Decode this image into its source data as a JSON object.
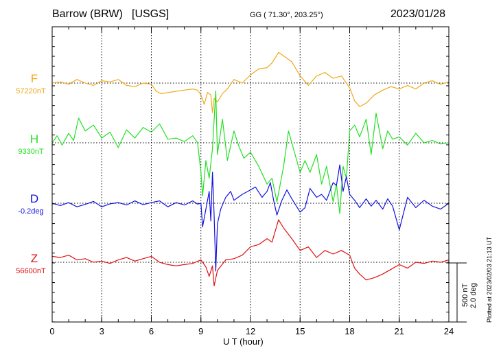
{
  "header": {
    "station": "Barrow (BRW)",
    "source": "[USGS]",
    "coords": "GG ( 71.30°, 203.25°)",
    "date": "2023/01/28"
  },
  "scale_bar": {
    "nt_label": "500 nT",
    "deg_label": "2.0 deg"
  },
  "plotted_note": "Plotted at 2023/02/03 21:13 UT",
  "chart_data": {
    "type": "line",
    "title": "",
    "xlabel": "U T (hour)",
    "ylabel": "",
    "xlim": [
      0,
      24
    ],
    "x_ticks": [
      "0",
      "3",
      "6",
      "9",
      "12",
      "15",
      "18",
      "21",
      "24"
    ],
    "grid": true,
    "x_unit": "hour UT",
    "baseline_unit": "nT (D in deg)",
    "scale_nT_per_bar": 500,
    "scale_deg_per_bar": 2.0,
    "series": [
      {
        "name": "F",
        "baseline_label": "57220nT",
        "color": "#f0a818",
        "points_x": [
          0,
          0.5,
          1,
          1.5,
          2,
          2.5,
          3,
          3.5,
          4,
          4.5,
          5,
          5.5,
          6,
          6.3,
          6.6,
          7,
          7.5,
          8,
          8.5,
          8.8,
          9,
          9.2,
          9.4,
          9.6,
          9.7,
          9.8,
          10,
          10.3,
          10.6,
          11,
          11.5,
          12,
          12.5,
          13,
          13.3,
          13.7,
          14,
          14.5,
          15,
          15.5,
          16,
          16.5,
          17,
          17.5,
          18,
          18.3,
          18.6,
          19,
          19.5,
          20,
          20.5,
          21,
          21.5,
          22,
          22.5,
          23,
          23.5,
          24
        ],
        "values": [
          0,
          10,
          -10,
          30,
          0,
          -20,
          20,
          10,
          30,
          -20,
          -30,
          0,
          -10,
          -70,
          -90,
          -80,
          -70,
          -60,
          -50,
          -60,
          -100,
          -180,
          -80,
          -100,
          -250,
          -130,
          -160,
          -90,
          -50,
          30,
          0,
          70,
          120,
          130,
          170,
          260,
          230,
          180,
          60,
          -20,
          60,
          90,
          40,
          60,
          -40,
          -150,
          -200,
          -170,
          -100,
          -60,
          -30,
          -50,
          -20,
          -50,
          0,
          20,
          -10,
          10
        ]
      },
      {
        "name": "H",
        "baseline_label": "9330nT",
        "color": "#22e022",
        "points_x": [
          0,
          0.3,
          0.6,
          1,
          1.3,
          1.6,
          2,
          2.5,
          3,
          3.5,
          4,
          4.5,
          5,
          5.5,
          6,
          6.5,
          7,
          7.5,
          8,
          8.5,
          8.8,
          9,
          9.1,
          9.3,
          9.5,
          9.7,
          9.9,
          10,
          10.3,
          10.6,
          11,
          11.3,
          11.6,
          12,
          12.5,
          13,
          13.3,
          13.6,
          14,
          14.3,
          14.6,
          15,
          15.3,
          15.6,
          16,
          16.3,
          16.6,
          17,
          17.2,
          17.4,
          17.6,
          17.8,
          18,
          18.3,
          18.6,
          19,
          19.3,
          19.6,
          20,
          20.3,
          20.6,
          21,
          21.5,
          22,
          22.5,
          23,
          23.5,
          24
        ],
        "values": [
          0,
          60,
          -20,
          80,
          20,
          210,
          100,
          150,
          40,
          90,
          -40,
          110,
          40,
          130,
          90,
          160,
          30,
          40,
          10,
          60,
          0,
          -250,
          -450,
          -150,
          -300,
          -50,
          440,
          -100,
          200,
          -150,
          100,
          -30,
          -130,
          -80,
          -200,
          -350,
          -300,
          -500,
          -200,
          100,
          -50,
          -250,
          -150,
          -250,
          -100,
          -350,
          -200,
          -500,
          -350,
          -600,
          -200,
          -300,
          100,
          150,
          50,
          200,
          -100,
          250,
          -50,
          100,
          30,
          50,
          -20,
          80,
          0,
          20,
          -10,
          0
        ]
      },
      {
        "name": "D",
        "baseline_label": "-0.2deg",
        "color": "#1010e0",
        "points_x": [
          0,
          0.5,
          1,
          1.5,
          2,
          2.5,
          3,
          3.5,
          4,
          4.5,
          5,
          5.5,
          6,
          6.5,
          7,
          7.5,
          8,
          8.5,
          8.8,
          9,
          9.1,
          9.3,
          9.5,
          9.6,
          9.7,
          9.8,
          9.9,
          10,
          10.2,
          10.5,
          10.8,
          11,
          11.5,
          12,
          12.3,
          12.7,
          13,
          13.2,
          13.4,
          13.6,
          13.9,
          14.2,
          14.5,
          15,
          15.3,
          15.6,
          16,
          16.3,
          16.6,
          17,
          17.2,
          17.4,
          17.6,
          17.8,
          18,
          18.3,
          18.6,
          19,
          19.3,
          19.6,
          20,
          20.3,
          20.6,
          21,
          21.5,
          22,
          22.5,
          23,
          23.5,
          24
        ],
        "values": [
          0,
          -0.08,
          0.02,
          -0.12,
          -0.04,
          0.06,
          -0.12,
          -0.02,
          0.02,
          -0.06,
          0.08,
          -0.05,
          0.02,
          0.08,
          -0.12,
          0.02,
          -0.06,
          0.08,
          -0.03,
          0,
          -0.8,
          -0.2,
          0.4,
          -0.6,
          1.05,
          -0.4,
          -2.3,
          -0.7,
          -0.2,
          0.2,
          0.4,
          0.1,
          0.3,
          0.45,
          0.55,
          0.2,
          0.4,
          0.7,
          0.1,
          -0.4,
          0.1,
          0.45,
          0.15,
          -0.3,
          -0.15,
          0.5,
          0.2,
          0.3,
          0.1,
          0.7,
          0.6,
          1.3,
          0.4,
          0.9,
          0.3,
          0.1,
          -0.15,
          0.15,
          -0.1,
          0.1,
          -0.2,
          0.15,
          -0.1,
          -0.9,
          0.2,
          -0.15,
          0.1,
          -0.1,
          -0.2,
          0
        ]
      },
      {
        "name": "Z",
        "baseline_label": "56600nT",
        "color": "#e01010",
        "points_x": [
          0,
          0.5,
          1,
          1.5,
          2,
          2.5,
          3,
          3.5,
          4,
          4.5,
          5,
          5.5,
          6,
          6.5,
          7,
          7.5,
          8,
          8.5,
          9,
          9.3,
          9.5,
          9.7,
          9.8,
          10,
          10.5,
          11,
          11.5,
          12,
          12.5,
          13,
          13.3,
          13.7,
          14,
          14.5,
          15,
          15.5,
          16,
          16.5,
          17,
          17.5,
          18,
          18.3,
          18.6,
          19,
          19.5,
          20,
          20.5,
          21,
          21.5,
          22,
          22.5,
          23,
          23.5,
          24
        ],
        "values": [
          50,
          40,
          60,
          20,
          30,
          0,
          10,
          -10,
          20,
          40,
          10,
          30,
          50,
          0,
          -20,
          -30,
          -20,
          -10,
          20,
          -40,
          -120,
          -30,
          -200,
          -70,
          20,
          30,
          60,
          130,
          150,
          200,
          170,
          360,
          290,
          200,
          100,
          130,
          40,
          100,
          70,
          100,
          60,
          -50,
          -100,
          -150,
          -130,
          -100,
          -60,
          -20,
          -50,
          0,
          -10,
          10,
          0,
          20
        ]
      }
    ]
  }
}
